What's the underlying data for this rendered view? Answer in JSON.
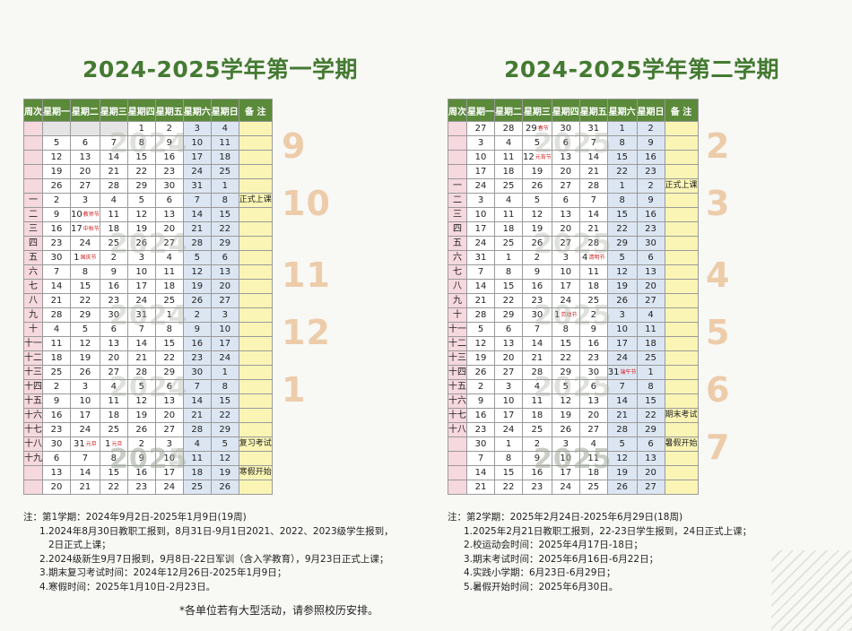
{
  "headers": [
    "周次",
    "星期一",
    "星期二",
    "星期三",
    "星期四",
    "星期五",
    "星期六",
    "星期日",
    "备 注"
  ],
  "sem1": {
    "title": "2024-2025学年第一学期",
    "rows": [
      [
        "",
        "",
        "",
        "",
        "1",
        "2",
        "3",
        "4",
        ""
      ],
      [
        "",
        "5",
        "6",
        "7",
        "8",
        "9",
        "10",
        "11",
        ""
      ],
      [
        "",
        "12",
        "13",
        "14",
        "15",
        "16",
        "17",
        "18",
        ""
      ],
      [
        "",
        "19",
        "20",
        "21",
        "22",
        "23",
        "24",
        "25",
        ""
      ],
      [
        "",
        "26",
        "27",
        "28",
        "29",
        "30",
        "31",
        "1",
        ""
      ],
      [
        "一",
        "2",
        "3",
        "4",
        "5",
        "6",
        "7",
        "8",
        "正式上课"
      ],
      [
        "二",
        "9",
        "10",
        "11",
        "12",
        "13",
        "14",
        "15",
        ""
      ],
      [
        "三",
        "16",
        "17",
        "18",
        "19",
        "20",
        "21",
        "22",
        ""
      ],
      [
        "四",
        "23",
        "24",
        "25",
        "26",
        "27",
        "28",
        "29",
        ""
      ],
      [
        "五",
        "30",
        "1",
        "2",
        "3",
        "4",
        "5",
        "6",
        ""
      ],
      [
        "六",
        "7",
        "8",
        "9",
        "10",
        "11",
        "12",
        "13",
        ""
      ],
      [
        "七",
        "14",
        "15",
        "16",
        "17",
        "18",
        "19",
        "20",
        ""
      ],
      [
        "八",
        "21",
        "22",
        "23",
        "24",
        "25",
        "26",
        "27",
        ""
      ],
      [
        "九",
        "28",
        "29",
        "30",
        "31",
        "1",
        "2",
        "3",
        ""
      ],
      [
        "十",
        "4",
        "5",
        "6",
        "7",
        "8",
        "9",
        "10",
        ""
      ],
      [
        "十一",
        "11",
        "12",
        "13",
        "14",
        "15",
        "16",
        "17",
        ""
      ],
      [
        "十二",
        "18",
        "19",
        "20",
        "21",
        "22",
        "23",
        "24",
        ""
      ],
      [
        "十三",
        "25",
        "26",
        "27",
        "28",
        "29",
        "30",
        "1",
        ""
      ],
      [
        "十四",
        "2",
        "3",
        "4",
        "5",
        "6",
        "7",
        "8",
        ""
      ],
      [
        "十五",
        "9",
        "10",
        "11",
        "12",
        "13",
        "14",
        "15",
        ""
      ],
      [
        "十六",
        "16",
        "17",
        "18",
        "19",
        "20",
        "21",
        "22",
        ""
      ],
      [
        "十七",
        "23",
        "24",
        "25",
        "26",
        "27",
        "28",
        "29",
        ""
      ],
      [
        "十八",
        "30",
        "31",
        "1",
        "2",
        "3",
        "4",
        "5",
        "复习考试"
      ],
      [
        "十九",
        "6",
        "7",
        "8",
        "9",
        "10",
        "11",
        "12",
        ""
      ],
      [
        "",
        "13",
        "14",
        "15",
        "16",
        "17",
        "18",
        "19",
        "寒假开始"
      ],
      [
        "",
        "20",
        "21",
        "22",
        "23",
        "24",
        "25",
        "26",
        ""
      ]
    ],
    "festivals": [
      {
        "r": 6,
        "c": 2,
        "t": "教师节"
      },
      {
        "r": 7,
        "c": 2,
        "t": "中秋节"
      },
      {
        "r": 9,
        "c": 2,
        "t": "国庆节"
      },
      {
        "r": 22,
        "c": 2,
        "t": "元旦"
      },
      {
        "r": 22,
        "c": 3,
        "t": "元旦"
      }
    ],
    "watermarks": [
      "2024",
      "2024",
      "2024",
      "2024",
      "2024",
      "2025"
    ],
    "month_marks": [
      "9",
      "10",
      "11",
      "12",
      "1"
    ],
    "notes": [
      "注：第1学期：2024年9月2日-2025年1月9日(19周)",
      "1.2024年8月30日教职工报到，8月31日-9月1日2021、2022、2023级学生报到，",
      "2日正式上课；",
      "2.2024级新生9月7日报到，9月8日-22日军训（含入学教育），9月23日正式上课；",
      "3.期末复习考试时间：2024年12月26日-2025年1月9日；",
      "4.寒假时间：2025年1月10日-2月23日。"
    ]
  },
  "sem2": {
    "title": "2024-2025学年第二学期",
    "rows": [
      [
        "",
        "27",
        "28",
        "29",
        "30",
        "31",
        "1",
        "2",
        ""
      ],
      [
        "",
        "3",
        "4",
        "5",
        "6",
        "7",
        "8",
        "9",
        ""
      ],
      [
        "",
        "10",
        "11",
        "12",
        "13",
        "14",
        "15",
        "16",
        ""
      ],
      [
        "",
        "17",
        "18",
        "19",
        "20",
        "21",
        "22",
        "23",
        ""
      ],
      [
        "一",
        "24",
        "25",
        "26",
        "27",
        "28",
        "1",
        "2",
        "正式上课"
      ],
      [
        "二",
        "3",
        "4",
        "5",
        "6",
        "7",
        "8",
        "9",
        ""
      ],
      [
        "三",
        "10",
        "11",
        "12",
        "13",
        "14",
        "15",
        "16",
        ""
      ],
      [
        "四",
        "17",
        "18",
        "19",
        "20",
        "21",
        "22",
        "23",
        ""
      ],
      [
        "五",
        "24",
        "25",
        "26",
        "27",
        "28",
        "29",
        "30",
        ""
      ],
      [
        "六",
        "31",
        "1",
        "2",
        "3",
        "4",
        "5",
        "6",
        ""
      ],
      [
        "七",
        "7",
        "8",
        "9",
        "10",
        "11",
        "12",
        "13",
        ""
      ],
      [
        "八",
        "14",
        "15",
        "16",
        "17",
        "18",
        "19",
        "20",
        ""
      ],
      [
        "九",
        "21",
        "22",
        "23",
        "24",
        "25",
        "26",
        "27",
        ""
      ],
      [
        "十",
        "28",
        "29",
        "30",
        "1",
        "2",
        "3",
        "4",
        ""
      ],
      [
        "十一",
        "5",
        "6",
        "7",
        "8",
        "9",
        "10",
        "11",
        ""
      ],
      [
        "十二",
        "12",
        "13",
        "14",
        "15",
        "16",
        "17",
        "18",
        ""
      ],
      [
        "十三",
        "19",
        "20",
        "21",
        "22",
        "23",
        "24",
        "25",
        ""
      ],
      [
        "十四",
        "26",
        "27",
        "28",
        "29",
        "30",
        "31",
        "1",
        ""
      ],
      [
        "十五",
        "2",
        "3",
        "4",
        "5",
        "6",
        "7",
        "8",
        ""
      ],
      [
        "十六",
        "9",
        "10",
        "11",
        "12",
        "13",
        "14",
        "15",
        ""
      ],
      [
        "十七",
        "16",
        "17",
        "18",
        "19",
        "20",
        "21",
        "22",
        "期末考试"
      ],
      [
        "十八",
        "23",
        "24",
        "25",
        "26",
        "27",
        "28",
        "29",
        ""
      ],
      [
        "",
        "30",
        "1",
        "2",
        "3",
        "4",
        "5",
        "6",
        "暑假开始"
      ],
      [
        "",
        "7",
        "8",
        "9",
        "10",
        "11",
        "12",
        "13",
        ""
      ],
      [
        "",
        "14",
        "15",
        "16",
        "17",
        "18",
        "19",
        "20",
        ""
      ],
      [
        "",
        "21",
        "22",
        "23",
        "24",
        "25",
        "26",
        "27",
        ""
      ]
    ],
    "festivals": [
      {
        "r": 0,
        "c": 3,
        "t": "春节"
      },
      {
        "r": 2,
        "c": 3,
        "t": "元宵节"
      },
      {
        "r": 9,
        "c": 5,
        "t": "清明节"
      },
      {
        "r": 13,
        "c": 4,
        "t": "劳动节"
      },
      {
        "r": 17,
        "c": 6,
        "t": "端午节"
      }
    ],
    "watermarks": [
      "2025",
      "2025",
      "2025",
      "2025",
      "2025",
      "2025"
    ],
    "month_marks": [
      "2",
      "3",
      "4",
      "5",
      "6",
      "7"
    ],
    "notes": [
      "注：第2学期：2025年2月24日-2025年6月29日(18周)",
      "1.2025年2月21日教职工报到，22-23日学生报到，24日正式上课；",
      "2.校运动会时间：2025年4月17日-18日；",
      "3.期末考试时间：2025年6月16日-6月22日；",
      "4.实践小学期：6月23日-6月29日；",
      "5.暑假开始时间：2025年6月30日。"
    ]
  },
  "footer": "*各单位若有大型活动，请参照校历安排。"
}
